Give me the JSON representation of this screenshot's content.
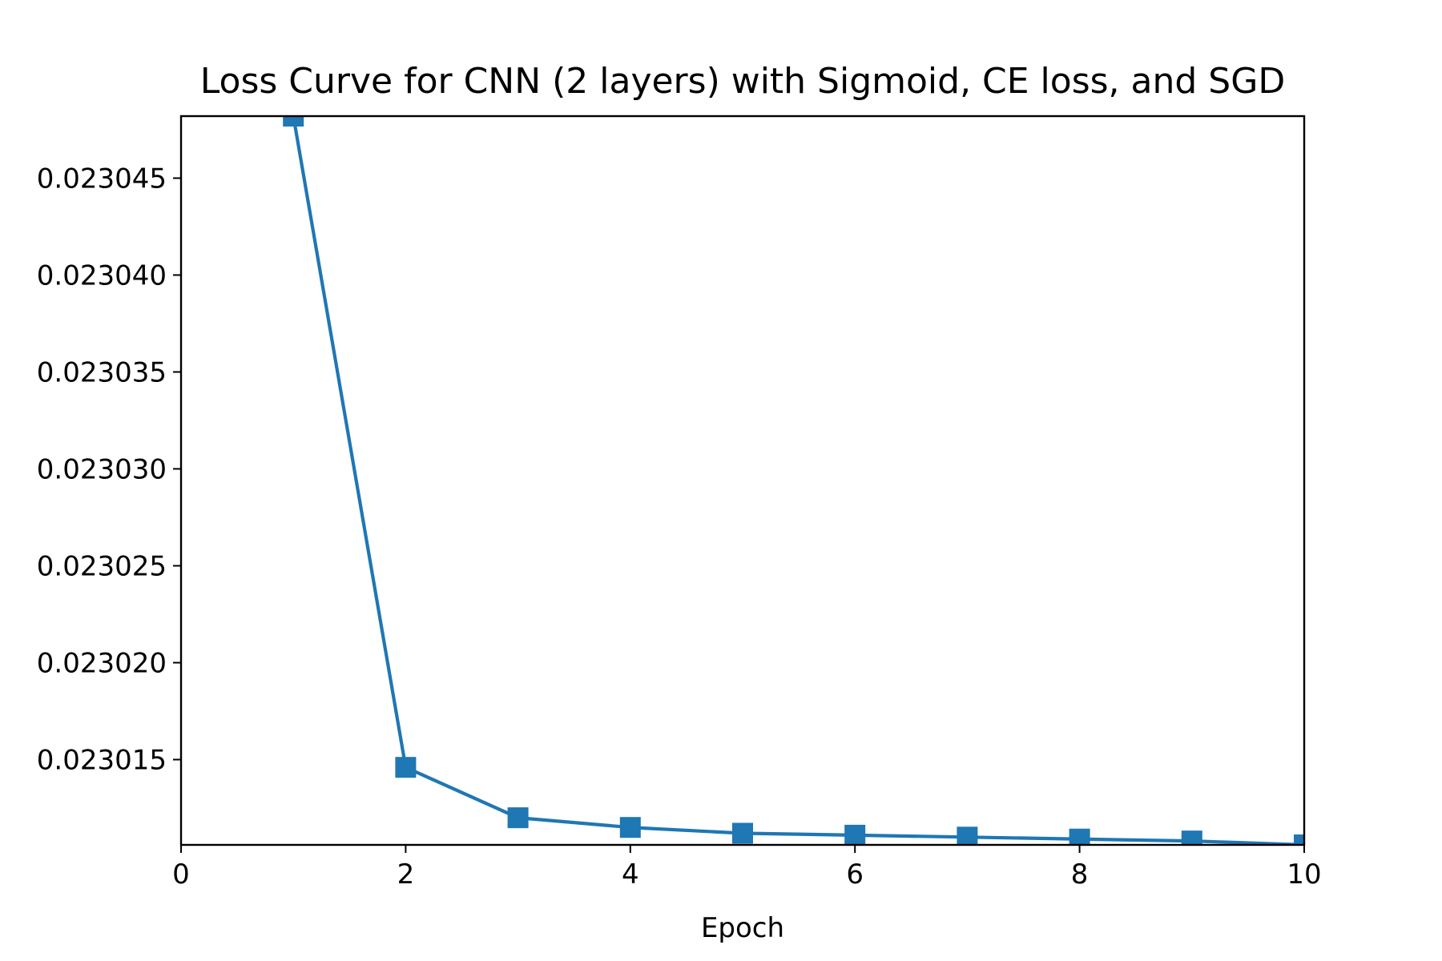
{
  "chart_data": {
    "type": "line",
    "title": "Loss Curve for CNN (2 layers) with Sigmoid, CE loss, and SGD",
    "xlabel": "Epoch",
    "ylabel": "",
    "xlim": [
      0,
      10
    ],
    "ylim": [
      0.0230106,
      0.0230482
    ],
    "x_ticks": [
      0,
      2,
      4,
      6,
      8,
      10
    ],
    "x_tick_labels": [
      "0",
      "2",
      "4",
      "6",
      "8",
      "10"
    ],
    "y_ticks": [
      0.023015,
      0.02302,
      0.023025,
      0.02303,
      0.023035,
      0.02304,
      0.023045
    ],
    "y_tick_labels": [
      "0.023015",
      "0.023020",
      "0.023025",
      "0.023030",
      "0.023035",
      "0.023040",
      "0.023045"
    ],
    "grid": false,
    "series": [
      {
        "color": "#1f77b4",
        "marker": "square",
        "x": [
          1,
          2,
          3,
          4,
          5,
          6,
          7,
          8,
          9,
          10
        ],
        "y": [
          0.0230482,
          0.0230146,
          0.023012,
          0.0230115,
          0.0230112,
          0.0230111,
          0.023011,
          0.0230109,
          0.0230108,
          0.0230106
        ]
      }
    ]
  }
}
